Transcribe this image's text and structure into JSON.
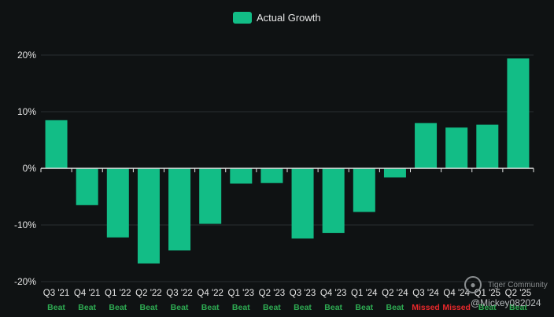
{
  "chart_data": {
    "type": "bar",
    "legend": {
      "label": "Actual Growth",
      "position": "top-center"
    },
    "series": [
      {
        "name": "Actual Growth",
        "color": "#12bd86",
        "values": [
          8.5,
          -6.5,
          -12.2,
          -16.8,
          -14.5,
          -9.8,
          -2.7,
          -2.6,
          -12.4,
          -11.4,
          -7.7,
          -1.6,
          8.0,
          7.2,
          7.7,
          19.4
        ]
      }
    ],
    "categories": [
      "Q3 '21",
      "Q4 '21",
      "Q1 '22",
      "Q2 '22",
      "Q3 '22",
      "Q4 '22",
      "Q1 '23",
      "Q2 '23",
      "Q3 '23",
      "Q4 '23",
      "Q1 '24",
      "Q2 '24",
      "Q3 '24",
      "Q4 '24",
      "Q1 '25",
      "Q2 '25"
    ],
    "sublabels": [
      "Beat",
      "Beat",
      "Beat",
      "Beat",
      "Beat",
      "Beat",
      "Beat",
      "Beat",
      "Beat",
      "Beat",
      "Beat",
      "Beat",
      "Missed",
      "Missed",
      "Beat",
      "Beat"
    ],
    "sublabel_colors": {
      "Beat": "#2eaa52",
      "Missed": "#e8282b"
    },
    "y_ticks": [
      {
        "value": 20,
        "label": "20%"
      },
      {
        "value": 10,
        "label": "10%"
      },
      {
        "value": 0,
        "label": "0%"
      },
      {
        "value": -10,
        "label": "-10%"
      },
      {
        "value": -20,
        "label": "-20%"
      }
    ],
    "ylim": [
      -20,
      20
    ],
    "grid": true,
    "title": "",
    "xlabel": "",
    "ylabel": ""
  },
  "watermark": {
    "brand": "Tiger Community",
    "user": "@Mickey082024"
  }
}
